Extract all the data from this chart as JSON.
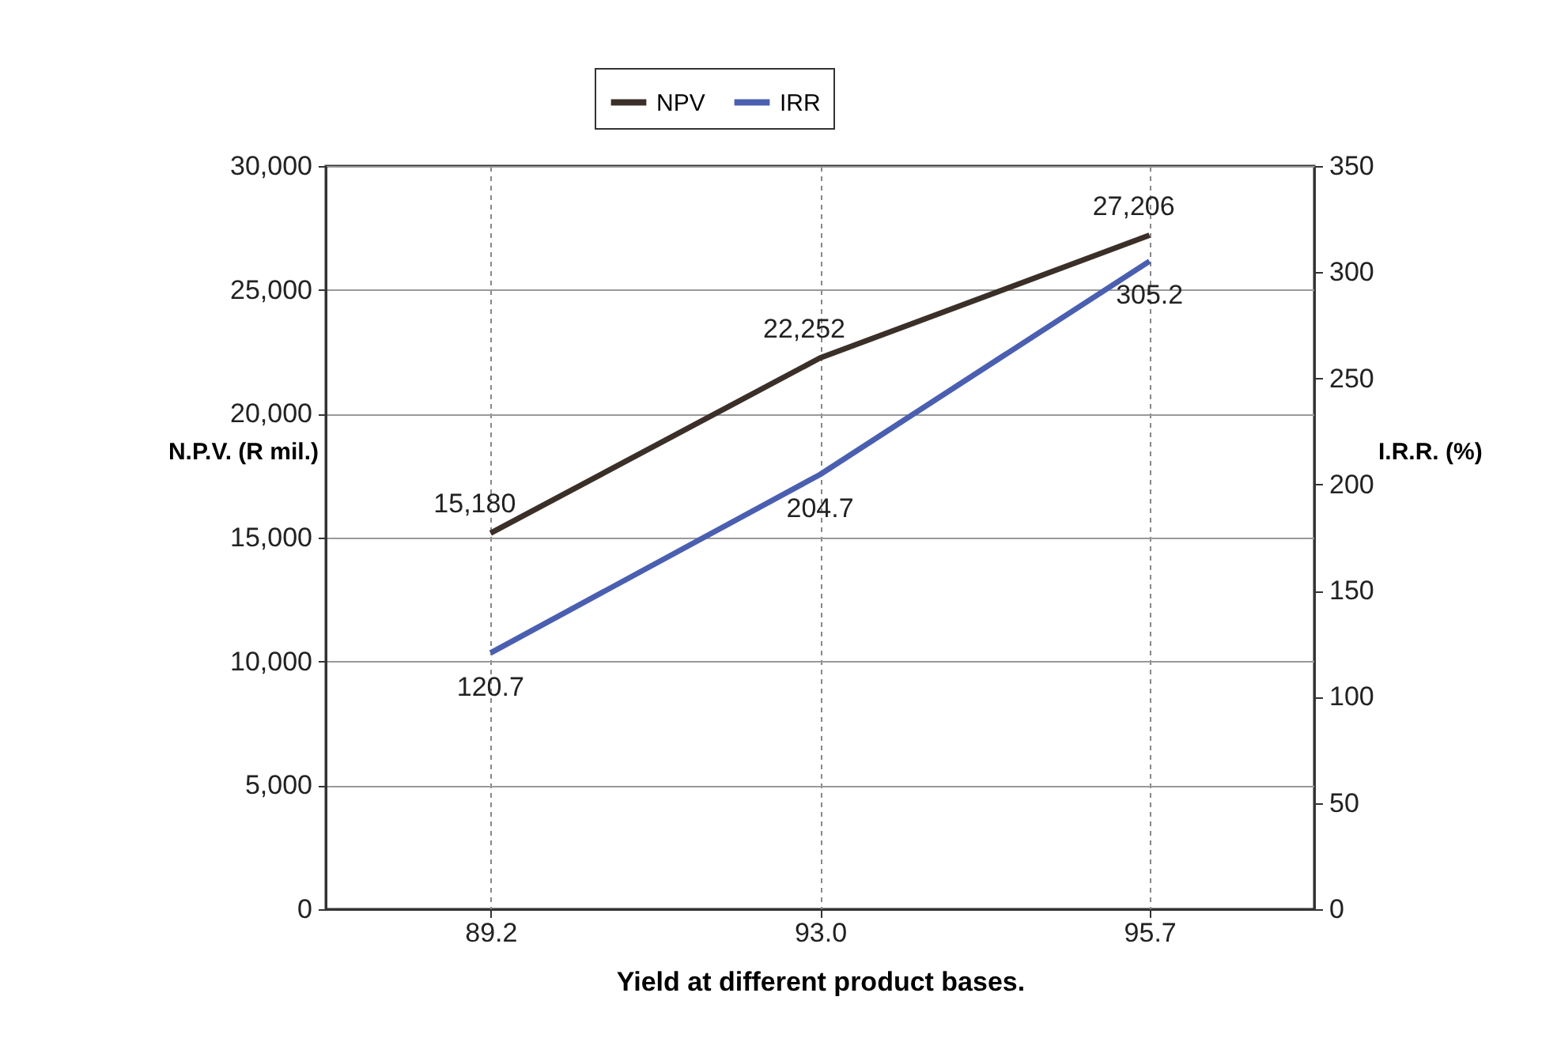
{
  "chart_data": {
    "type": "line",
    "categories": [
      "89.2",
      "93.0",
      "95.7"
    ],
    "xlabel": "Yield at different product bases.",
    "ylabel": "N.P.V. (R mil.)",
    "y2label": "I.R.R. (%)",
    "series": [
      {
        "name": "NPV",
        "color": "#3b3029",
        "values": [
          15180,
          22252,
          27206
        ],
        "value_labels": [
          "15,180",
          "22,252",
          "27,206"
        ]
      },
      {
        "name": "IRR",
        "color": "#4a5fb0",
        "values": [
          120.7,
          204.7,
          305.2
        ],
        "axis": "y2",
        "value_labels": [
          "120.7",
          "204.7",
          "305.2"
        ]
      }
    ],
    "ylim": [
      0,
      30000
    ],
    "yticks": [
      {
        "value": 0,
        "label": "0"
      },
      {
        "value": 5000,
        "label": "5,000"
      },
      {
        "value": 10000,
        "label": "10,000"
      },
      {
        "value": 15000,
        "label": "15,000"
      },
      {
        "value": 20000,
        "label": "20,000"
      },
      {
        "value": 25000,
        "label": "25,000"
      },
      {
        "value": 30000,
        "label": "30,000"
      }
    ],
    "y2lim": [
      0,
      350
    ],
    "y2ticks": [
      0,
      50,
      100,
      150,
      200,
      250,
      300,
      350
    ],
    "grid": true,
    "legend": "top",
    "marker": "none",
    "line_style": "solid"
  }
}
